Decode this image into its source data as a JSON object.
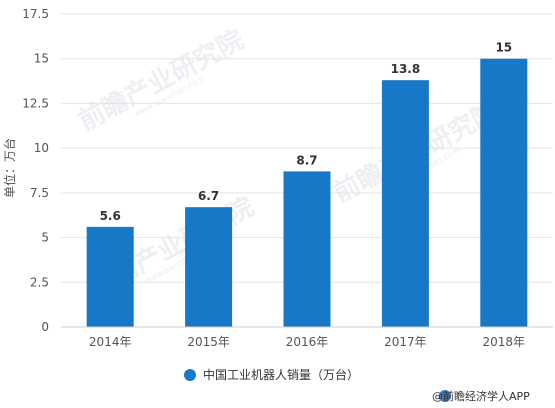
{
  "chart_data": {
    "type": "bar",
    "categories": [
      "2014年",
      "2015年",
      "2016年",
      "2017年",
      "2018年"
    ],
    "series": [
      {
        "name": "中国工业机器人销量（万台）",
        "values": [
          5.6,
          6.7,
          8.7,
          13.8,
          15
        ],
        "color": "#1878c8"
      }
    ],
    "data_labels": [
      "5.6",
      "6.7",
      "8.7",
      "13.8",
      "15"
    ],
    "ylabel": "单位：万台",
    "xlabel": "",
    "ylim": [
      0,
      17.5
    ],
    "yticks": [
      0,
      2.5,
      5,
      7.5,
      10,
      12.5,
      15,
      17.5
    ],
    "ytick_labels": [
      "0",
      "2.5",
      "5",
      "7.5",
      "10",
      "12.5",
      "15",
      "17.5"
    ],
    "grid": "horizontal",
    "legend_position": "bottom-center"
  },
  "watermark": {
    "text": "前瞻产业研究院",
    "sub": "www.qianzhan.com"
  },
  "footer": {
    "source": "@前瞻经济学人APP"
  }
}
